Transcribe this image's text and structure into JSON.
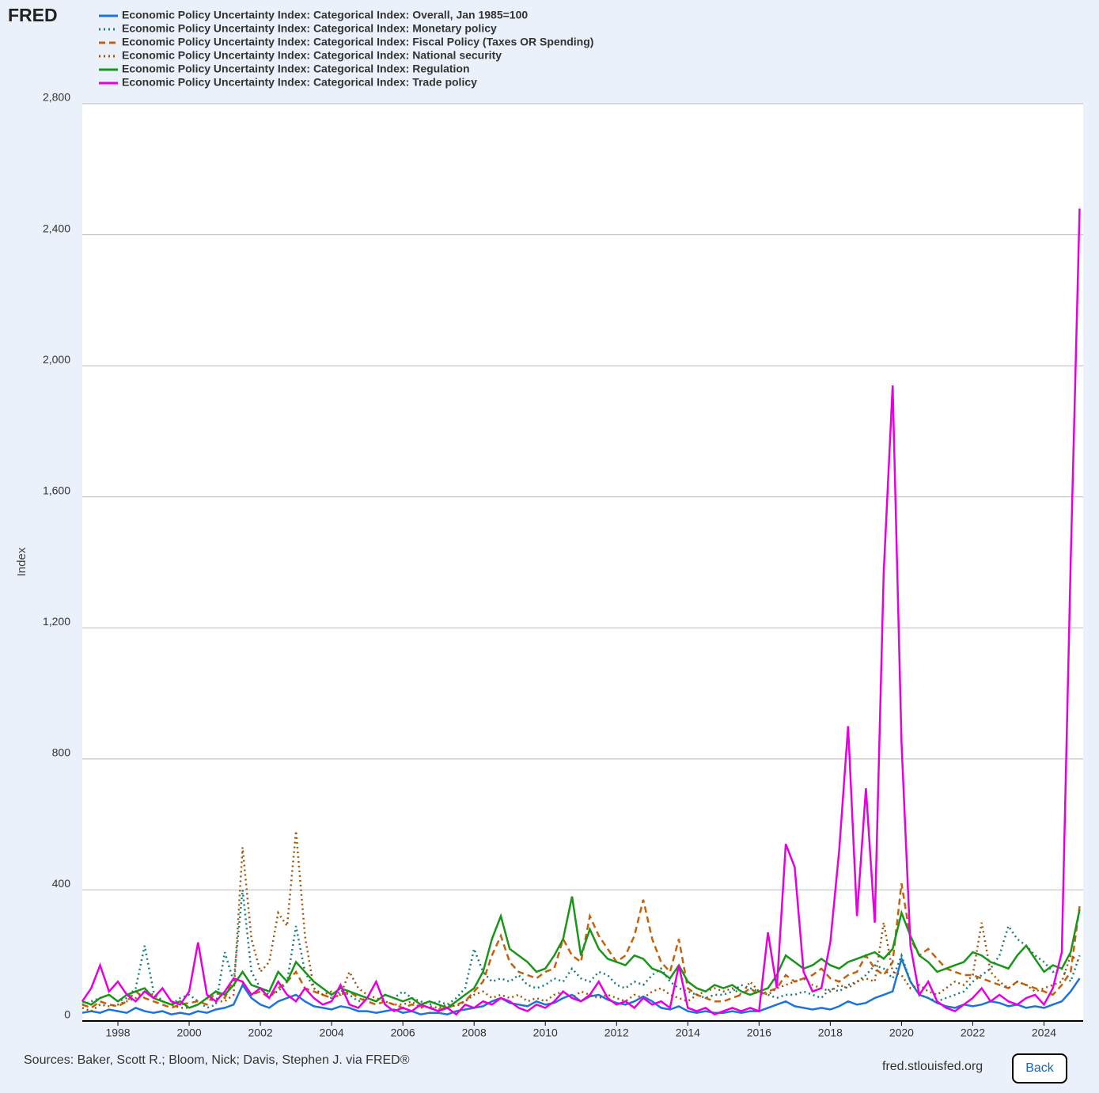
{
  "brand": "FRED",
  "chart_data": {
    "type": "line",
    "y_label": "Index",
    "x": [
      1997,
      1997.25,
      1997.5,
      1997.75,
      1998,
      1998.25,
      1998.5,
      1998.75,
      1999,
      1999.25,
      1999.5,
      1999.75,
      2000,
      2000.25,
      2000.5,
      2000.75,
      2001,
      2001.25,
      2001.5,
      2001.75,
      2002,
      2002.25,
      2002.5,
      2002.75,
      2003,
      2003.25,
      2003.5,
      2003.75,
      2004,
      2004.25,
      2004.5,
      2004.75,
      2005,
      2005.25,
      2005.5,
      2005.75,
      2006,
      2006.25,
      2006.5,
      2006.75,
      2007,
      2007.25,
      2007.5,
      2007.75,
      2008,
      2008.25,
      2008.5,
      2008.75,
      2009,
      2009.25,
      2009.5,
      2009.75,
      2010,
      2010.25,
      2010.5,
      2010.75,
      2011,
      2011.25,
      2011.5,
      2011.75,
      2012,
      2012.25,
      2012.5,
      2012.75,
      2013,
      2013.25,
      2013.5,
      2013.75,
      2014,
      2014.25,
      2014.5,
      2014.75,
      2015,
      2015.25,
      2015.5,
      2015.75,
      2016,
      2016.25,
      2016.5,
      2016.75,
      2017,
      2017.25,
      2017.5,
      2017.75,
      2018,
      2018.25,
      2018.5,
      2018.75,
      2019,
      2019.25,
      2019.5,
      2019.75,
      2020,
      2020.25,
      2020.5,
      2020.75,
      2021,
      2021.25,
      2021.5,
      2021.75,
      2022,
      2022.25,
      2022.5,
      2022.75,
      2023,
      2023.25,
      2023.5,
      2023.75,
      2024,
      2024.25,
      2024.5,
      2024.75,
      2025
    ],
    "xlim": [
      1997,
      2025.1
    ],
    "xticks": [
      1998,
      2000,
      2002,
      2004,
      2006,
      2008,
      2010,
      2012,
      2014,
      2016,
      2018,
      2020,
      2022,
      2024
    ],
    "ylim": [
      0,
      2800
    ],
    "yticks": [
      0,
      400,
      800,
      {
        "value": 1200,
        "label": "1,200"
      },
      {
        "value": 1600,
        "label": "1,600"
      },
      {
        "value": 2000,
        "label": "2,000"
      },
      {
        "value": 2400,
        "label": "2,400"
      },
      {
        "value": 2800,
        "label": "2,800"
      }
    ],
    "grid": true,
    "series": [
      {
        "name": "Economic Policy Uncertainty Index: Categorical Index: Overall, Jan 1985=100",
        "color": "#1f72d8",
        "dash": "solid",
        "values": [
          25,
          30,
          25,
          35,
          30,
          25,
          40,
          30,
          25,
          30,
          20,
          25,
          20,
          30,
          25,
          35,
          40,
          50,
          110,
          70,
          50,
          40,
          60,
          70,
          80,
          60,
          45,
          40,
          35,
          45,
          40,
          30,
          30,
          25,
          30,
          35,
          25,
          30,
          20,
          25,
          25,
          20,
          30,
          35,
          40,
          45,
          60,
          70,
          55,
          50,
          45,
          60,
          50,
          55,
          70,
          80,
          60,
          75,
          80,
          65,
          55,
          50,
          60,
          75,
          60,
          40,
          35,
          45,
          30,
          25,
          30,
          25,
          25,
          30,
          25,
          30,
          30,
          40,
          50,
          60,
          45,
          40,
          35,
          40,
          35,
          45,
          60,
          50,
          55,
          70,
          80,
          90,
          190,
          120,
          80,
          70,
          55,
          45,
          40,
          50,
          45,
          50,
          60,
          55,
          45,
          50,
          40,
          45,
          40,
          50,
          60,
          90,
          130
        ]
      },
      {
        "name": "Economic Policy Uncertainty Index: Categorical Index: Monetary policy",
        "color": "#1b7c7c",
        "dash": "dotted",
        "values": [
          50,
          60,
          70,
          80,
          60,
          70,
          100,
          230,
          90,
          60,
          50,
          70,
          80,
          60,
          40,
          50,
          210,
          120,
          400,
          150,
          100,
          80,
          90,
          120,
          290,
          150,
          100,
          80,
          70,
          90,
          80,
          60,
          70,
          60,
          80,
          70,
          90,
          70,
          60,
          50,
          60,
          50,
          70,
          100,
          220,
          150,
          120,
          130,
          120,
          140,
          110,
          100,
          110,
          130,
          120,
          160,
          130,
          120,
          150,
          140,
          110,
          100,
          120,
          110,
          140,
          160,
          120,
          100,
          90,
          80,
          70,
          80,
          80,
          90,
          110,
          100,
          90,
          80,
          70,
          80,
          80,
          90,
          80,
          70,
          100,
          90,
          110,
          120,
          140,
          170,
          160,
          130,
          200,
          120,
          80,
          70,
          60,
          70,
          80,
          90,
          120,
          140,
          160,
          200,
          290,
          250,
          230,
          200,
          180,
          150,
          160,
          120,
          200
        ]
      },
      {
        "name": "Economic Policy Uncertainty Index: Categorical Index: Fiscal Policy (Taxes OR Spending)",
        "color": "#c2620f",
        "dash": "dashed",
        "values": [
          50,
          40,
          60,
          50,
          45,
          60,
          90,
          70,
          60,
          50,
          40,
          50,
          55,
          60,
          50,
          90,
          70,
          130,
          120,
          80,
          90,
          70,
          100,
          120,
          150,
          100,
          90,
          80,
          70,
          80,
          90,
          70,
          60,
          50,
          60,
          50,
          40,
          50,
          45,
          40,
          35,
          40,
          50,
          60,
          90,
          120,
          200,
          260,
          180,
          150,
          140,
          130,
          150,
          160,
          250,
          200,
          180,
          320,
          260,
          220,
          180,
          200,
          260,
          370,
          250,
          180,
          150,
          250,
          100,
          80,
          70,
          60,
          60,
          70,
          80,
          100,
          80,
          90,
          100,
          140,
          120,
          130,
          140,
          160,
          130,
          120,
          140,
          150,
          200,
          160,
          140,
          180,
          420,
          250,
          200,
          220,
          190,
          160,
          150,
          140,
          140,
          130,
          120,
          110,
          100,
          120,
          110,
          100,
          90,
          80,
          110,
          150,
          350
        ]
      },
      {
        "name": "Economic Policy Uncertainty Index: Categorical Index: National security",
        "color": "#a0560a",
        "dash": "dotted",
        "values": [
          40,
          30,
          50,
          45,
          50,
          60,
          70,
          90,
          80,
          60,
          50,
          40,
          40,
          50,
          70,
          60,
          60,
          80,
          530,
          250,
          150,
          180,
          330,
          290,
          580,
          260,
          100,
          80,
          90,
          80,
          150,
          100,
          80,
          70,
          60,
          50,
          50,
          60,
          40,
          45,
          40,
          50,
          45,
          60,
          80,
          90,
          70,
          80,
          70,
          80,
          60,
          70,
          60,
          80,
          90,
          70,
          90,
          80,
          70,
          80,
          70,
          60,
          80,
          70,
          90,
          100,
          80,
          70,
          60,
          80,
          90,
          100,
          90,
          100,
          80,
          120,
          90,
          80,
          100,
          110,
          120,
          130,
          110,
          100,
          90,
          110,
          100,
          120,
          130,
          120,
          300,
          150,
          140,
          100,
          110,
          90,
          80,
          100,
          120,
          110,
          140,
          300,
          150,
          120,
          100,
          120,
          110,
          90,
          100,
          110,
          120,
          200,
          180
        ]
      },
      {
        "name": "Economic Policy Uncertainty Index: Categorical Index: Regulation",
        "color": "#1a951a",
        "dash": "solid",
        "values": [
          60,
          50,
          70,
          80,
          60,
          80,
          90,
          100,
          70,
          60,
          50,
          60,
          40,
          50,
          70,
          90,
          80,
          110,
          150,
          110,
          100,
          90,
          150,
          120,
          180,
          150,
          120,
          100,
          80,
          100,
          90,
          80,
          70,
          60,
          80,
          70,
          60,
          70,
          50,
          60,
          50,
          40,
          60,
          80,
          100,
          150,
          250,
          320,
          220,
          200,
          180,
          150,
          160,
          200,
          250,
          380,
          200,
          280,
          220,
          190,
          180,
          170,
          200,
          190,
          160,
          150,
          130,
          170,
          120,
          100,
          90,
          110,
          100,
          110,
          90,
          80,
          90,
          100,
          140,
          200,
          180,
          160,
          170,
          190,
          170,
          160,
          180,
          190,
          200,
          210,
          190,
          220,
          330,
          260,
          200,
          180,
          150,
          160,
          170,
          180,
          210,
          200,
          180,
          170,
          160,
          200,
          230,
          190,
          150,
          170,
          160,
          210,
          340
        ]
      },
      {
        "name": "Economic Policy Uncertainty Index: Categorical Index: Trade policy",
        "color": "#e600e0",
        "dash": "solid",
        "values": [
          60,
          100,
          170,
          90,
          120,
          80,
          60,
          90,
          70,
          100,
          60,
          50,
          90,
          240,
          80,
          60,
          90,
          130,
          120,
          80,
          100,
          70,
          120,
          80,
          60,
          100,
          70,
          50,
          60,
          110,
          50,
          40,
          70,
          120,
          50,
          30,
          40,
          30,
          50,
          40,
          30,
          40,
          20,
          50,
          40,
          60,
          50,
          70,
          60,
          40,
          30,
          50,
          40,
          60,
          90,
          70,
          60,
          80,
          120,
          70,
          50,
          60,
          40,
          70,
          50,
          60,
          40,
          170,
          40,
          30,
          40,
          20,
          30,
          40,
          30,
          40,
          30,
          270,
          100,
          540,
          470,
          150,
          90,
          100,
          240,
          520,
          900,
          320,
          710,
          300,
          1370,
          1940,
          850,
          230,
          80,
          120,
          60,
          40,
          30,
          50,
          70,
          100,
          60,
          80,
          60,
          50,
          70,
          80,
          50,
          100,
          210,
          1400,
          2480
        ]
      }
    ]
  },
  "footer": {
    "sources": "Sources: Baker, Scott R.; Bloom, Nick; Davis, Stephen J. via FRED®",
    "site": "fred.stlouisfed.org",
    "button": "Back"
  }
}
